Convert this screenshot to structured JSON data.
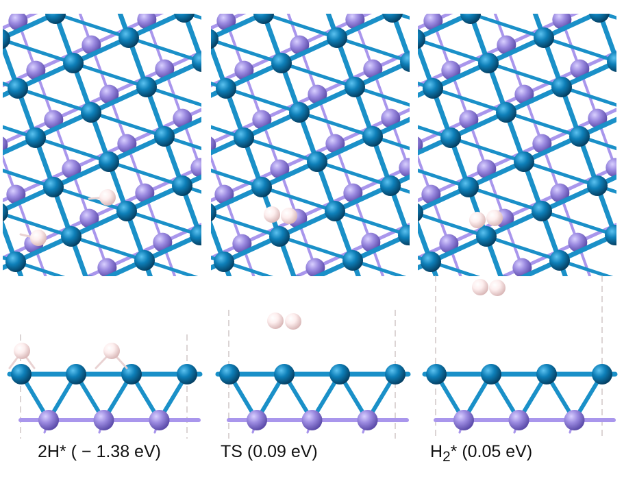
{
  "panels": [
    {
      "caption": "2H* ( − 1.38 eV)",
      "state": "2H*",
      "energy_eV": -1.38
    },
    {
      "caption_main": "TS (0.09 eV)",
      "state": "TS",
      "energy_eV": 0.09
    },
    {
      "caption_prefix": "H",
      "caption_sub": "2",
      "caption_suffix": "* (0.05 eV)",
      "state": "H2*",
      "energy_eV": 0.05
    }
  ],
  "colors": {
    "metal_atom": "#0e7fb8",
    "nonmetal_atom": "#9b8ae0",
    "hydrogen_atom": "#fdeeee",
    "bond_metal": "#1a90c8",
    "bond_nonmetal": "#a996ec",
    "cell_boundary": "#c8bdbd"
  }
}
